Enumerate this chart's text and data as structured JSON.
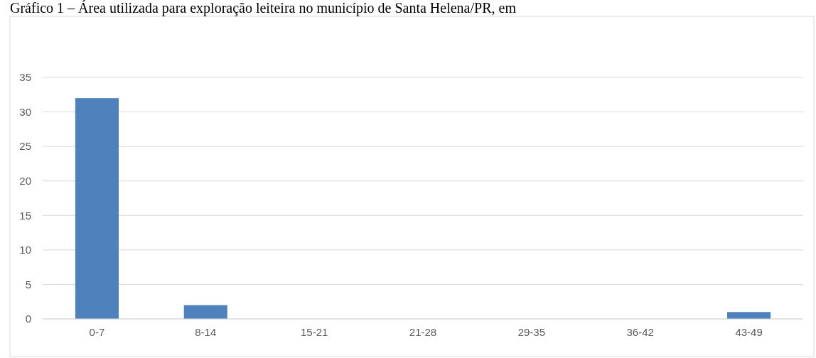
{
  "chart_data": {
    "type": "bar",
    "title": "Gráfico 1 – Área utilizada para exploração leiteira no município de Santa Helena/PR, em",
    "categories": [
      "0-7",
      "8-14",
      "15-21",
      "21-28",
      "29-35",
      "36-42",
      "43-49"
    ],
    "values": [
      32,
      2,
      0,
      0,
      0,
      0,
      1
    ],
    "color": "#4f81bd",
    "ylim": [
      0,
      35
    ],
    "yticks": [
      0,
      5,
      10,
      15,
      20,
      25,
      30,
      35
    ],
    "grid": "y"
  }
}
